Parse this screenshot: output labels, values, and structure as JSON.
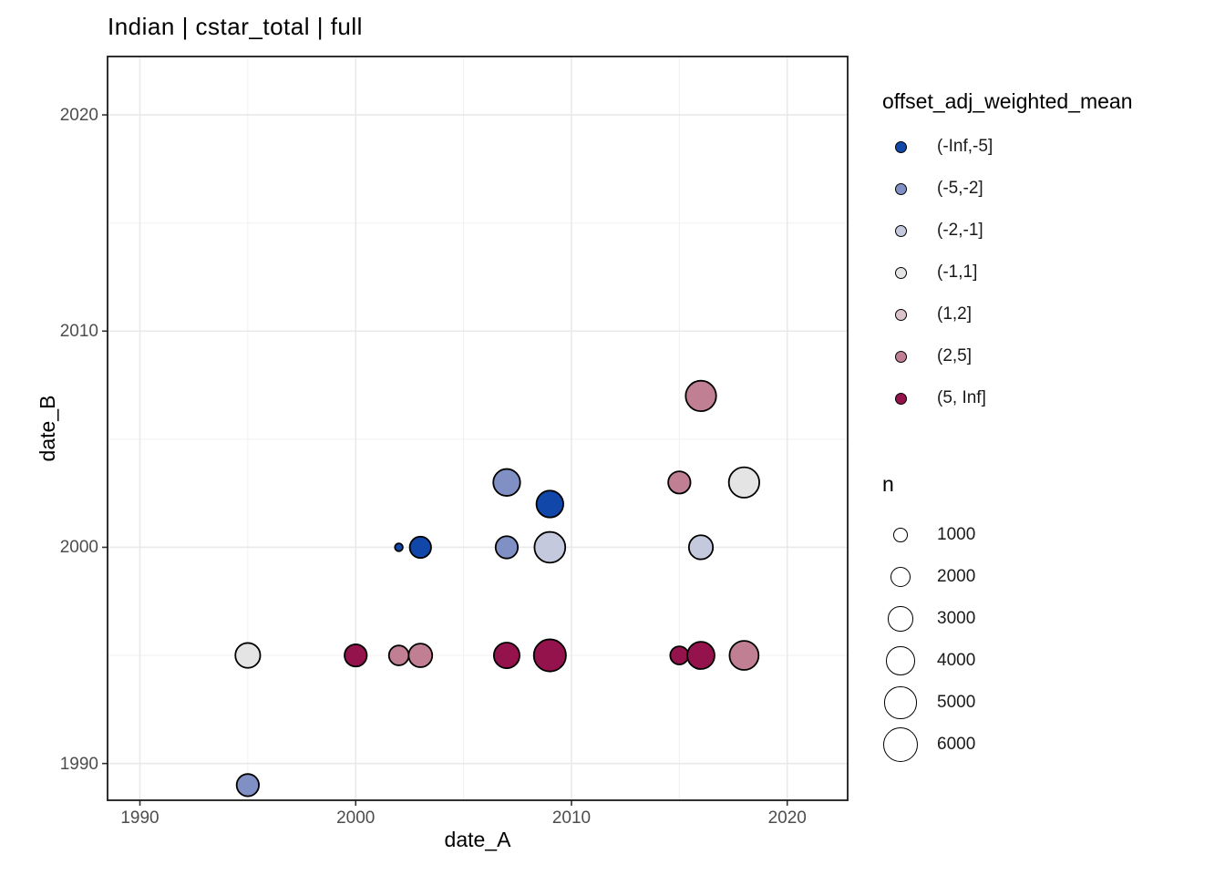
{
  "title": "Indian | cstar_total | full",
  "colors": {
    "background": "#ffffff",
    "panel_border": "#1a1a1a",
    "grid_major": "#e9e9e9",
    "grid_minor": "#f2f2f2",
    "tick_mark": "#333333",
    "tick_label": "#4d4d4d",
    "point_stroke": "#000000"
  },
  "chart_data": {
    "type": "scatter",
    "title": "Indian | cstar_total | full",
    "xlabel": "date_A",
    "ylabel": "date_B",
    "xlim": [
      1988.5,
      2022.8
    ],
    "ylim": [
      1988.3,
      2022.7
    ],
    "x_ticks": [
      "1990",
      "2000",
      "2010",
      "2020"
    ],
    "x_tick_values": [
      1990,
      2000,
      2010,
      2020
    ],
    "y_ticks": [
      "1990",
      "2000",
      "2010",
      "2020"
    ],
    "y_tick_values": [
      1990,
      2000,
      2010,
      2020
    ],
    "x_minor": [
      1995,
      2005,
      2015
    ],
    "y_minor": [
      1995,
      2005,
      2015
    ],
    "grid": "on",
    "legend_position": "right",
    "color_field": "offset_adj_weighted_mean",
    "size_field": "n",
    "size_scale": {
      "max_n": 6000,
      "max_radius_px": 19.3
    },
    "points": [
      {
        "x": 1995,
        "y": 1995,
        "n": 3000,
        "bin": "(-1,1]"
      },
      {
        "x": 1995,
        "y": 1989,
        "n": 2400,
        "bin": "(-5,-2]"
      },
      {
        "x": 2000,
        "y": 1995,
        "n": 2400,
        "bin": "(5, Inf]"
      },
      {
        "x": 2002,
        "y": 2000,
        "n": 300,
        "bin": "(-Inf,-5]"
      },
      {
        "x": 2002,
        "y": 1995,
        "n": 1900,
        "bin": "(2,5]"
      },
      {
        "x": 2003,
        "y": 2000,
        "n": 2200,
        "bin": "(-Inf,-5]"
      },
      {
        "x": 2003,
        "y": 1995,
        "n": 2700,
        "bin": "(2,5]"
      },
      {
        "x": 2007,
        "y": 2003,
        "n": 3500,
        "bin": "(-5,-2]"
      },
      {
        "x": 2007,
        "y": 2000,
        "n": 2400,
        "bin": "(-5,-2]"
      },
      {
        "x": 2007,
        "y": 1995,
        "n": 3200,
        "bin": "(5, Inf]"
      },
      {
        "x": 2009,
        "y": 2002,
        "n": 3500,
        "bin": "(-Inf,-5]"
      },
      {
        "x": 2009,
        "y": 2000,
        "n": 4600,
        "bin": "(-2,-1]"
      },
      {
        "x": 2009,
        "y": 1995,
        "n": 5000,
        "bin": "(5, Inf]"
      },
      {
        "x": 2015,
        "y": 2003,
        "n": 2400,
        "bin": "(2,5]"
      },
      {
        "x": 2015,
        "y": 1995,
        "n": 1600,
        "bin": "(5, Inf]"
      },
      {
        "x": 2016,
        "y": 2007,
        "n": 4500,
        "bin": "(2,5]"
      },
      {
        "x": 2016,
        "y": 2000,
        "n": 2800,
        "bin": "(-2,-1]"
      },
      {
        "x": 2016,
        "y": 1995,
        "n": 3600,
        "bin": "(5, Inf]"
      },
      {
        "x": 2018,
        "y": 2003,
        "n": 4500,
        "bin": "(-1,1]"
      },
      {
        "x": 2018,
        "y": 1995,
        "n": 4100,
        "bin": "(2,5]"
      }
    ]
  },
  "axes": {
    "x_title": "date_A",
    "y_title": "date_B"
  },
  "legend_color": {
    "title": "offset_adj_weighted_mean",
    "items": [
      {
        "label": "(-Inf,-5]",
        "color": "#1147a8"
      },
      {
        "label": "(-5,-2]",
        "color": "#8190c4"
      },
      {
        "label": "(-2,-1]",
        "color": "#c5c9dd"
      },
      {
        "label": "(-1,1]",
        "color": "#e4e4e4"
      },
      {
        "label": "(1,2]",
        "color": "#dcc2ca"
      },
      {
        "label": "(2,5]",
        "color": "#c07f93"
      },
      {
        "label": "(5, Inf]",
        "color": "#95134c"
      }
    ]
  },
  "legend_size": {
    "title": "n",
    "items": [
      {
        "label": "1000",
        "n": 1000
      },
      {
        "label": "2000",
        "n": 2000
      },
      {
        "label": "3000",
        "n": 3000
      },
      {
        "label": "4000",
        "n": 4000
      },
      {
        "label": "5000",
        "n": 5000
      },
      {
        "label": "6000",
        "n": 6000
      }
    ]
  }
}
